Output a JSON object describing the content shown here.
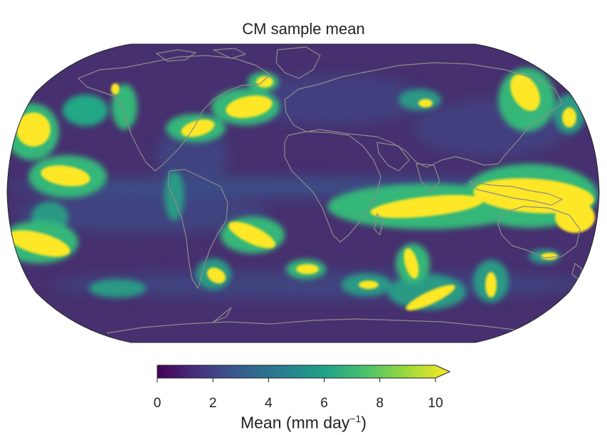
{
  "map": {
    "title": "CM sample mean",
    "projection": "Robinson",
    "colormap": "viridis",
    "colormap_stops": [
      "#440154",
      "#46327e",
      "#365c8d",
      "#277f8e",
      "#1fa187",
      "#4ac16d",
      "#a0da39",
      "#fde725"
    ],
    "background_color": "#47306f",
    "coastline_color": "#8c8c8c",
    "high_value_color": "#fde725"
  },
  "colorbar": {
    "ticks": [
      "0",
      "2",
      "4",
      "6",
      "8",
      "10"
    ],
    "range": [
      0,
      10
    ],
    "extend": "max",
    "label_prefix": "Mean (mm day",
    "label_exponent": "−1",
    "label_suffix": ")"
  }
}
